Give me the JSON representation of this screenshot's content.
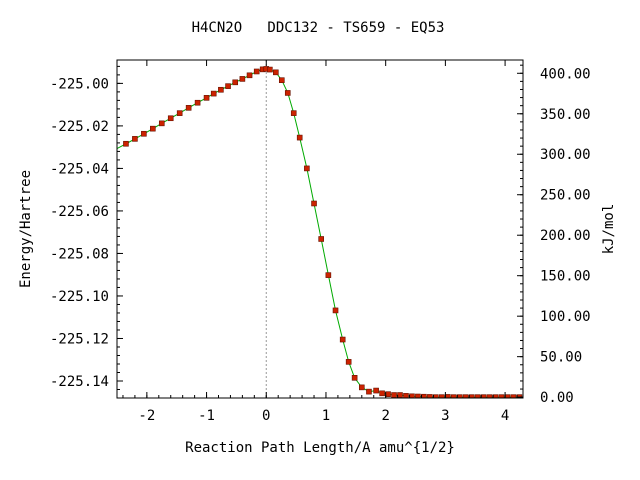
{
  "chart_data": {
    "type": "line",
    "title": "H4CN2O   DDC132 - TS659 - EQ53",
    "xlabel": "Reaction Path Length/A amu^{1/2}",
    "ylabel": "Energy/Hartree",
    "y2label": "kJ/mol",
    "xlim": [
      -2.5,
      4.3
    ],
    "ylim": [
      -225.148,
      -224.989
    ],
    "x_ticks": [
      -2,
      -1,
      0,
      1,
      2,
      3,
      4
    ],
    "x_tick_labels": [
      "-2",
      "-1",
      "0",
      "1",
      "2",
      "3",
      "4"
    ],
    "y_ticks": [
      -225.0,
      -225.02,
      -225.04,
      -225.06,
      -225.08,
      -225.1,
      -225.12,
      -225.14
    ],
    "y_tick_labels": [
      "-225.00",
      "-225.02",
      "-225.04",
      "-225.06",
      "-225.08",
      "-225.10",
      "-225.12",
      "-225.14"
    ],
    "y2_ticks": [
      0,
      50,
      100,
      150,
      200,
      250,
      300,
      350,
      400
    ],
    "y2_tick_labels": [
      "0.00",
      "50.00",
      "100.00",
      "150.00",
      "200.00",
      "250.00",
      "300.00",
      "350.00",
      "400.00"
    ],
    "y2_zero_hartree": -225.1476,
    "hartree_to_kjmol": 2625.5,
    "ts_marker_x": 0,
    "grid": false,
    "legend": "none",
    "colors": {
      "line": "#00aa00",
      "marker": "#cc2200",
      "marker_edge": "#661100",
      "ts_line": "#999999",
      "axis": "#000000"
    },
    "series": [
      {
        "points": [
          [
            -2.35,
            -225.0284
          ],
          [
            -2.2,
            -225.0261
          ],
          [
            -2.05,
            -225.0237
          ],
          [
            -1.9,
            -225.0213
          ],
          [
            -1.75,
            -225.0188
          ],
          [
            -1.6,
            -225.0164
          ],
          [
            -1.45,
            -225.014
          ],
          [
            -1.3,
            -225.0115
          ],
          [
            -1.15,
            -225.0091
          ],
          [
            -1.0,
            -225.0068
          ],
          [
            -0.88,
            -225.0048
          ],
          [
            -0.76,
            -225.003
          ],
          [
            -0.64,
            -225.0013
          ],
          [
            -0.52,
            -224.9995
          ],
          [
            -0.4,
            -224.9979
          ],
          [
            -0.28,
            -224.9962
          ],
          [
            -0.16,
            -224.9944
          ],
          [
            -0.06,
            -224.9934
          ],
          [
            0.0,
            -224.9932
          ],
          [
            0.06,
            -224.9935
          ],
          [
            0.16,
            -224.9948
          ],
          [
            0.26,
            -224.9985
          ],
          [
            0.36,
            -225.0045
          ],
          [
            0.46,
            -225.014
          ],
          [
            0.56,
            -225.0255
          ],
          [
            0.68,
            -225.04
          ],
          [
            0.8,
            -225.0565
          ],
          [
            0.92,
            -225.0732
          ],
          [
            1.04,
            -225.0902
          ],
          [
            1.16,
            -225.1068
          ],
          [
            1.28,
            -225.1205
          ],
          [
            1.38,
            -225.131
          ],
          [
            1.48,
            -225.1385
          ],
          [
            1.6,
            -225.143
          ],
          [
            1.72,
            -225.145
          ],
          [
            1.84,
            -225.1445
          ],
          [
            1.94,
            -225.1458
          ],
          [
            2.04,
            -225.1462
          ],
          [
            2.14,
            -225.1466
          ],
          [
            2.24,
            -225.1466
          ],
          [
            2.34,
            -225.147
          ],
          [
            2.44,
            -225.1472
          ],
          [
            2.54,
            -225.1473
          ],
          [
            2.64,
            -225.1474
          ],
          [
            2.74,
            -225.1475
          ],
          [
            2.84,
            -225.1476
          ],
          [
            2.94,
            -225.1476
          ],
          [
            3.04,
            -225.1475
          ],
          [
            3.14,
            -225.1476
          ],
          [
            3.24,
            -225.1476
          ],
          [
            3.34,
            -225.1476
          ],
          [
            3.44,
            -225.1476
          ],
          [
            3.54,
            -225.1476
          ],
          [
            3.64,
            -225.1476
          ],
          [
            3.74,
            -225.1476
          ],
          [
            3.84,
            -225.1476
          ],
          [
            3.94,
            -225.1476
          ],
          [
            4.04,
            -225.1476
          ],
          [
            4.14,
            -225.1476
          ],
          [
            4.24,
            -225.1476
          ]
        ]
      }
    ]
  }
}
